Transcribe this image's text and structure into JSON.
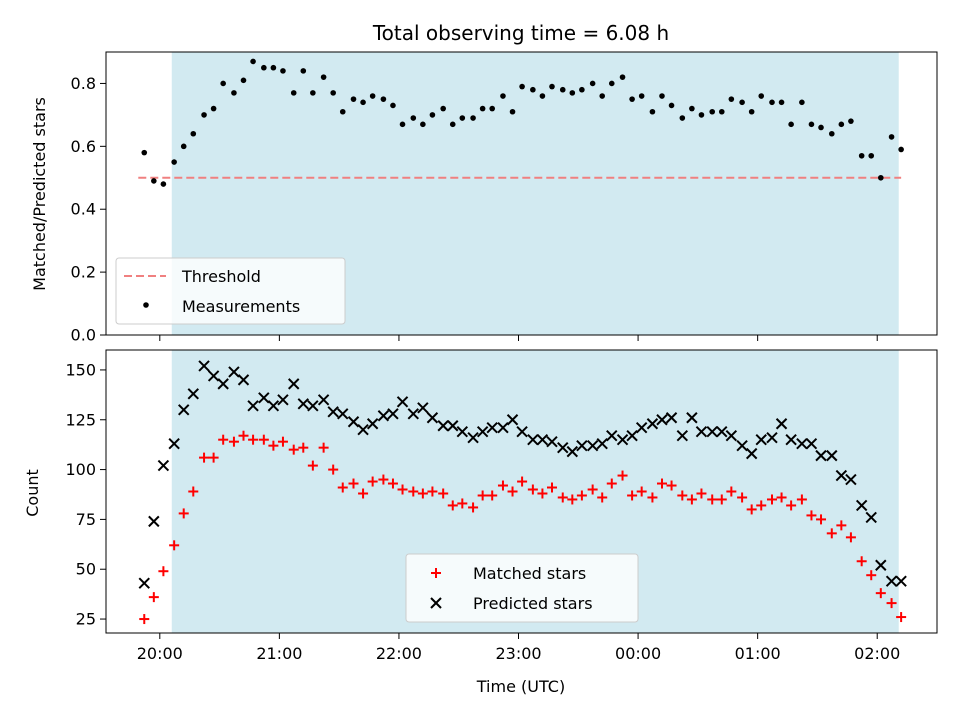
{
  "chart_data": [
    {
      "type": "scatter",
      "title": "Total observing time = 6.08 h",
      "xlabel": "",
      "ylabel": "Matched/Predicted stars",
      "xlim": [
        19.55,
        26.5
      ],
      "ylim": [
        0.0,
        0.9
      ],
      "yticks": [
        0.0,
        0.2,
        0.4,
        0.6,
        0.8
      ],
      "yticklabels": [
        "0.0",
        "0.2",
        "0.4",
        "0.6",
        "0.8"
      ],
      "shaded_x_range": [
        20.1,
        26.18
      ],
      "shade_color": "#add8e6",
      "threshold": {
        "name": "Threshold",
        "y": 0.5,
        "color": "#f08080",
        "style": "dashed"
      },
      "series": [
        {
          "name": "Measurements",
          "color": "#000000",
          "marker": "dot",
          "x": [
            19.87,
            19.95,
            20.03,
            20.12,
            20.2,
            20.28,
            20.37,
            20.45,
            20.53,
            20.62,
            20.7,
            20.78,
            20.87,
            20.95,
            21.03,
            21.12,
            21.2,
            21.28,
            21.37,
            21.45,
            21.53,
            21.62,
            21.7,
            21.78,
            21.87,
            21.95,
            22.03,
            22.12,
            22.2,
            22.28,
            22.37,
            22.45,
            22.53,
            22.62,
            22.7,
            22.78,
            22.87,
            22.95,
            23.03,
            23.12,
            23.2,
            23.28,
            23.37,
            23.45,
            23.53,
            23.62,
            23.7,
            23.78,
            23.87,
            23.95,
            24.03,
            24.12,
            24.2,
            24.28,
            24.37,
            24.45,
            24.53,
            24.62,
            24.7,
            24.78,
            24.87,
            24.95,
            25.03,
            25.12,
            25.2,
            25.28,
            25.37,
            25.45,
            25.53,
            25.62,
            25.7,
            25.78,
            25.87,
            25.95,
            26.03,
            26.12,
            26.2
          ],
          "y": [
            0.58,
            0.49,
            0.48,
            0.55,
            0.6,
            0.64,
            0.7,
            0.72,
            0.8,
            0.77,
            0.81,
            0.87,
            0.85,
            0.85,
            0.84,
            0.77,
            0.84,
            0.77,
            0.82,
            0.77,
            0.71,
            0.75,
            0.74,
            0.76,
            0.75,
            0.73,
            0.67,
            0.69,
            0.67,
            0.7,
            0.72,
            0.67,
            0.69,
            0.69,
            0.72,
            0.72,
            0.76,
            0.71,
            0.79,
            0.78,
            0.76,
            0.79,
            0.78,
            0.77,
            0.78,
            0.8,
            0.76,
            0.8,
            0.82,
            0.75,
            0.76,
            0.71,
            0.76,
            0.73,
            0.69,
            0.72,
            0.7,
            0.71,
            0.71,
            0.75,
            0.74,
            0.71,
            0.76,
            0.74,
            0.74,
            0.67,
            0.74,
            0.67,
            0.66,
            0.64,
            0.67,
            0.68,
            0.57,
            0.57,
            0.5,
            0.63,
            0.59
          ]
        }
      ],
      "legend": {
        "placement": "lower-left",
        "entries": [
          "Threshold",
          "Measurements"
        ]
      }
    },
    {
      "type": "scatter",
      "title": "",
      "xlabel": "Time (UTC)",
      "ylabel": "Count",
      "xlim": [
        19.55,
        26.5
      ],
      "ylim": [
        18,
        160
      ],
      "yticks": [
        25,
        50,
        75,
        100,
        125,
        150
      ],
      "yticklabels": [
        "25",
        "50",
        "75",
        "100",
        "125",
        "150"
      ],
      "xticks": [
        20,
        21,
        22,
        23,
        24,
        25,
        26
      ],
      "xticklabels": [
        "20:00",
        "21:00",
        "22:00",
        "23:00",
        "00:00",
        "01:00",
        "02:00"
      ],
      "shaded_x_range": [
        20.1,
        26.18
      ],
      "shade_color": "#add8e6",
      "series": [
        {
          "name": "Matched stars",
          "color": "#ff0000",
          "marker": "plus",
          "x": [
            19.87,
            19.95,
            20.03,
            20.12,
            20.2,
            20.28,
            20.37,
            20.45,
            20.53,
            20.62,
            20.7,
            20.78,
            20.87,
            20.95,
            21.03,
            21.12,
            21.2,
            21.28,
            21.37,
            21.45,
            21.53,
            21.62,
            21.7,
            21.78,
            21.87,
            21.95,
            22.03,
            22.12,
            22.2,
            22.28,
            22.37,
            22.45,
            22.53,
            22.62,
            22.7,
            22.78,
            22.87,
            22.95,
            23.03,
            23.12,
            23.2,
            23.28,
            23.37,
            23.45,
            23.53,
            23.62,
            23.7,
            23.78,
            23.87,
            23.95,
            24.03,
            24.12,
            24.2,
            24.28,
            24.37,
            24.45,
            24.53,
            24.62,
            24.7,
            24.78,
            24.87,
            24.95,
            25.03,
            25.12,
            25.2,
            25.28,
            25.37,
            25.45,
            25.53,
            25.62,
            25.7,
            25.78,
            25.87,
            25.95,
            26.03,
            26.12,
            26.2
          ],
          "y": [
            25,
            36,
            49,
            62,
            78,
            89,
            106,
            106,
            115,
            114,
            117,
            115,
            115,
            112,
            114,
            110,
            111,
            102,
            111,
            100,
            91,
            93,
            88,
            94,
            95,
            93,
            90,
            89,
            88,
            89,
            88,
            82,
            83,
            81,
            87,
            87,
            92,
            89,
            94,
            90,
            88,
            91,
            86,
            85,
            87,
            90,
            86,
            93,
            97,
            87,
            89,
            86,
            93,
            92,
            87,
            85,
            88,
            85,
            85,
            89,
            86,
            80,
            82,
            85,
            86,
            82,
            85,
            77,
            75,
            68,
            72,
            66,
            54,
            47,
            38,
            33,
            26
          ]
        },
        {
          "name": "Predicted stars",
          "color": "#000000",
          "marker": "x",
          "x": [
            19.87,
            19.95,
            20.03,
            20.12,
            20.2,
            20.28,
            20.37,
            20.45,
            20.53,
            20.62,
            20.7,
            20.78,
            20.87,
            20.95,
            21.03,
            21.12,
            21.2,
            21.28,
            21.37,
            21.45,
            21.53,
            21.62,
            21.7,
            21.78,
            21.87,
            21.95,
            22.03,
            22.12,
            22.2,
            22.28,
            22.37,
            22.45,
            22.53,
            22.62,
            22.7,
            22.78,
            22.87,
            22.95,
            23.03,
            23.12,
            23.2,
            23.28,
            23.37,
            23.45,
            23.53,
            23.62,
            23.7,
            23.78,
            23.87,
            23.95,
            24.03,
            24.12,
            24.2,
            24.28,
            24.37,
            24.45,
            24.53,
            24.62,
            24.7,
            24.78,
            24.87,
            24.95,
            25.03,
            25.12,
            25.2,
            25.28,
            25.37,
            25.45,
            25.53,
            25.62,
            25.7,
            25.78,
            25.87,
            25.95,
            26.03,
            26.12,
            26.2
          ],
          "y": [
            43,
            74,
            102,
            113,
            130,
            138,
            152,
            147,
            143,
            149,
            145,
            132,
            136,
            132,
            135,
            143,
            133,
            132,
            135,
            129,
            128,
            124,
            120,
            123,
            127,
            128,
            134,
            128,
            131,
            126,
            122,
            122,
            119,
            116,
            119,
            121,
            121,
            125,
            119,
            115,
            115,
            114,
            111,
            109,
            112,
            112,
            113,
            117,
            115,
            117,
            121,
            123,
            125,
            126,
            117,
            126,
            119,
            119,
            119,
            117,
            112,
            108,
            115,
            116,
            123,
            115,
            113,
            113,
            107,
            107,
            97,
            95,
            82,
            76,
            52,
            44,
            44
          ]
        }
      ],
      "legend": {
        "placement": "lower-center",
        "entries": [
          "Matched stars",
          "Predicted stars"
        ]
      }
    }
  ]
}
